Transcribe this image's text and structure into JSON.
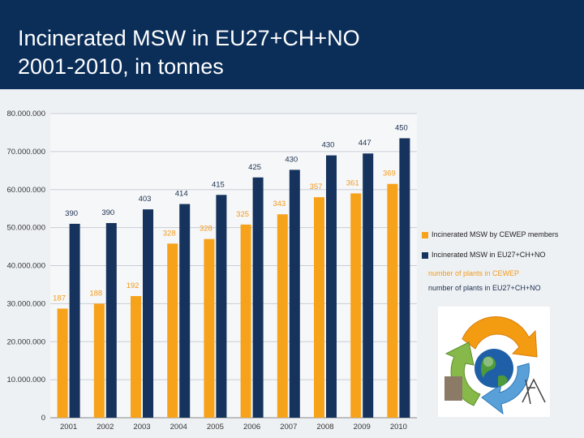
{
  "slide": {
    "title_line1": "Incinerated MSW in EU27+CH+NO",
    "title_line2": "2001-2010, in tonnes"
  },
  "colors": {
    "header": "#0b2e59",
    "orange": "#f7a21b",
    "navy": "#15335c",
    "orange_label": "#f29a1a",
    "navy_label": "#1b2f4e"
  },
  "chart_data": {
    "type": "bar",
    "categories": [
      "2001",
      "2002",
      "2003",
      "2004",
      "2005",
      "2006",
      "2007",
      "2008",
      "2009",
      "2010"
    ],
    "series": [
      {
        "name": "Incinerated MSW by CEWEP members",
        "color": "#f7a21b",
        "values": [
          28700000,
          30000000,
          32000000,
          45800000,
          47000000,
          50800000,
          53500000,
          58000000,
          59000000,
          61500000
        ]
      },
      {
        "name": "Incinerated MSW in EU27+CH+NO",
        "color": "#15335c",
        "values": [
          51000000,
          51200000,
          54800000,
          56200000,
          58600000,
          63200000,
          65200000,
          69000000,
          69500000,
          73500000
        ]
      }
    ],
    "plant_counts": {
      "cewep": {
        "name": "number of plants in CEWEP",
        "labels": [
          "187",
          "188",
          "192",
          "328",
          "328",
          "325",
          "343",
          "357",
          "361",
          "369"
        ]
      },
      "total": {
        "name": "number of plants in EU27+CH+NO",
        "labels": [
          "390",
          "390",
          "403",
          "414",
          "415",
          "425",
          "430",
          "430",
          "447",
          "450"
        ]
      }
    },
    "y_ticks": [
      "0",
      "10.000.000",
      "20.000.000",
      "30.000.000",
      "40.000.000",
      "50.000.000",
      "60.000.000",
      "70.000.000",
      "80.000.000"
    ],
    "ylim": [
      0,
      80000000
    ],
    "legend_position": "right"
  }
}
